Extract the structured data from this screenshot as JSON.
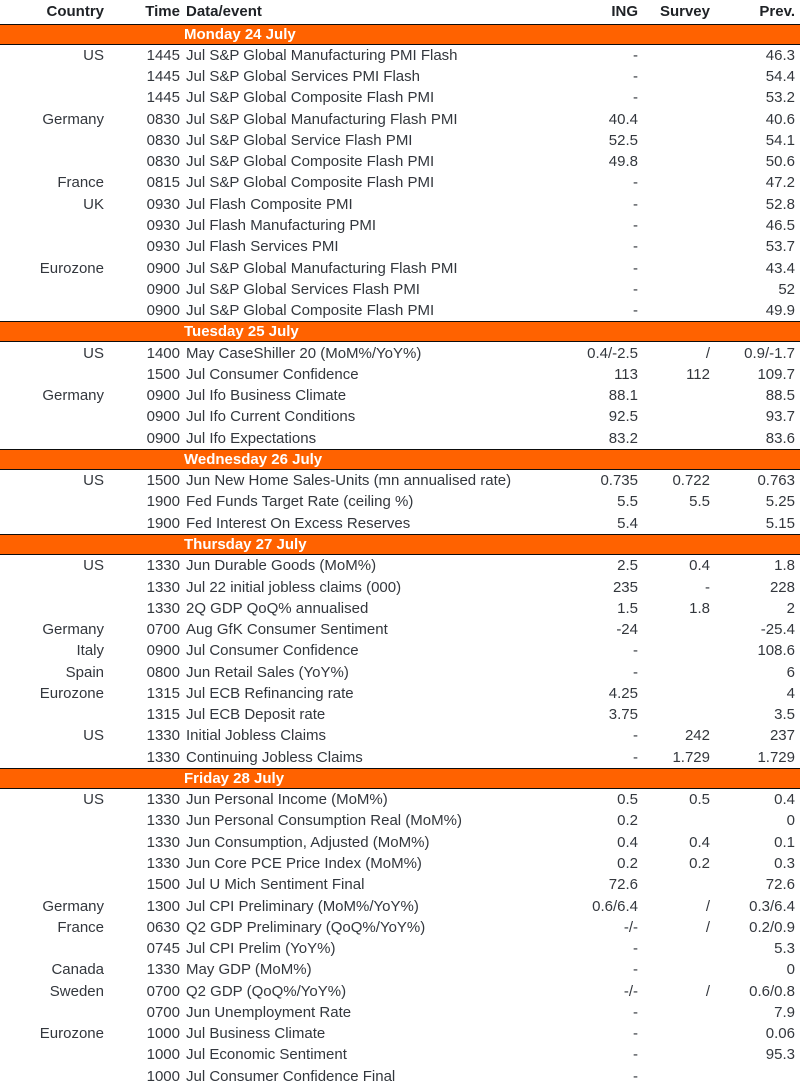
{
  "header": {
    "country": "Country",
    "time": "Time",
    "event": "Data/event",
    "ing": "ING",
    "survey": "Survey",
    "prev": "Prev."
  },
  "colors": {
    "accent_orange": "#FF6200",
    "day_bar_text": "#FFFFFF",
    "body_text": "#33373D",
    "separator_line": "#0D0D0D"
  },
  "days": [
    {
      "label": "Monday 24 July",
      "rows": [
        {
          "country": "US",
          "time": "1445",
          "event": "Jul S&P Global Manufacturing PMI Flash",
          "ing": "-",
          "survey": "",
          "prev": "46.3"
        },
        {
          "country": "",
          "time": "1445",
          "event": "Jul S&P Global Services PMI Flash",
          "ing": "-",
          "survey": "",
          "prev": "54.4"
        },
        {
          "country": "",
          "time": "1445",
          "event": "Jul S&P Global Composite Flash PMI",
          "ing": "-",
          "survey": "",
          "prev": "53.2"
        },
        {
          "country": "Germany",
          "time": "0830",
          "event": "Jul S&P Global Manufacturing Flash PMI",
          "ing": "40.4",
          "survey": "",
          "prev": "40.6"
        },
        {
          "country": "",
          "time": "0830",
          "event": "Jul S&P Global Service Flash PMI",
          "ing": "52.5",
          "survey": "",
          "prev": "54.1"
        },
        {
          "country": "",
          "time": "0830",
          "event": "Jul S&P Global Composite Flash PMI",
          "ing": "49.8",
          "survey": "",
          "prev": "50.6"
        },
        {
          "country": "France",
          "time": "0815",
          "event": "Jul S&P Global Composite Flash PMI",
          "ing": "-",
          "survey": "",
          "prev": "47.2"
        },
        {
          "country": "UK",
          "time": "0930",
          "event": "Jul Flash Composite PMI",
          "ing": "-",
          "survey": "",
          "prev": "52.8"
        },
        {
          "country": "",
          "time": "0930",
          "event": "Jul Flash Manufacturing PMI",
          "ing": "-",
          "survey": "",
          "prev": "46.5"
        },
        {
          "country": "",
          "time": "0930",
          "event": "Jul Flash Services PMI",
          "ing": "-",
          "survey": "",
          "prev": "53.7"
        },
        {
          "country": "Eurozone",
          "time": "0900",
          "event": "Jul S&P Global Manufacturing Flash PMI",
          "ing": "-",
          "survey": "",
          "prev": "43.4"
        },
        {
          "country": "",
          "time": "0900",
          "event": "Jul S&P Global Services Flash PMI",
          "ing": "-",
          "survey": "",
          "prev": "52"
        },
        {
          "country": "",
          "time": "0900",
          "event": "Jul S&P Global Composite Flash PMI",
          "ing": "-",
          "survey": "",
          "prev": "49.9"
        }
      ]
    },
    {
      "label": "Tuesday 25 July",
      "rows": [
        {
          "country": "US",
          "time": "1400",
          "event": "May CaseShiller 20 (MoM%/YoY%)",
          "ing": "0.4/-2.5",
          "survey": "/",
          "prev": "0.9/-1.7"
        },
        {
          "country": "",
          "time": "1500",
          "event": "Jul Consumer Confidence",
          "ing": "113",
          "survey": "112",
          "prev": "109.7"
        },
        {
          "country": "Germany",
          "time": "0900",
          "event": "Jul Ifo Business Climate",
          "ing": "88.1",
          "survey": "",
          "prev": "88.5"
        },
        {
          "country": "",
          "time": "0900",
          "event": "Jul Ifo Current Conditions",
          "ing": "92.5",
          "survey": "",
          "prev": "93.7"
        },
        {
          "country": "",
          "time": "0900",
          "event": "Jul Ifo Expectations",
          "ing": "83.2",
          "survey": "",
          "prev": "83.6"
        }
      ]
    },
    {
      "label": "Wednesday 26 July",
      "rows": [
        {
          "country": "US",
          "time": "1500",
          "event": "Jun New Home Sales-Units (mn annualised rate)",
          "ing": "0.735",
          "survey": "0.722",
          "prev": "0.763"
        },
        {
          "country": "",
          "time": "1900",
          "event": "Fed Funds Target Rate (ceiling %)",
          "ing": "5.5",
          "survey": "5.5",
          "prev": "5.25"
        },
        {
          "country": "",
          "time": "1900",
          "event": "Fed Interest On Excess Reserves",
          "ing": "5.4",
          "survey": "",
          "prev": "5.15"
        }
      ]
    },
    {
      "label": "Thursday 27 July",
      "rows": [
        {
          "country": "US",
          "time": "1330",
          "event": "Jun Durable Goods (MoM%)",
          "ing": "2.5",
          "survey": "0.4",
          "prev": "1.8"
        },
        {
          "country": "",
          "time": "1330",
          "event": "Jul 22 initial jobless claims (000)",
          "ing": "235",
          "survey": "-",
          "prev": "228"
        },
        {
          "country": "",
          "time": "1330",
          "event": "2Q GDP QoQ% annualised",
          "ing": "1.5",
          "survey": "1.8",
          "prev": "2"
        },
        {
          "country": "Germany",
          "time": "0700",
          "event": "Aug GfK Consumer Sentiment",
          "ing": "-24",
          "survey": "",
          "prev": "-25.4"
        },
        {
          "country": "Italy",
          "time": "0900",
          "event": "Jul Consumer Confidence",
          "ing": "-",
          "survey": "",
          "prev": "108.6"
        },
        {
          "country": "Spain",
          "time": "0800",
          "event": "Jun Retail Sales (YoY%)",
          "ing": "-",
          "survey": "",
          "prev": "6"
        },
        {
          "country": "Eurozone",
          "time": "1315",
          "event": "Jul ECB Refinancing rate",
          "ing": "4.25",
          "survey": "",
          "prev": "4"
        },
        {
          "country": "",
          "time": "1315",
          "event": "Jul ECB Deposit rate",
          "ing": "3.75",
          "survey": "",
          "prev": "3.5"
        },
        {
          "country": "US",
          "time": "1330",
          "event": "Initial Jobless Claims",
          "ing": "-",
          "survey": "242",
          "prev": "237"
        },
        {
          "country": "",
          "time": "1330",
          "event": "Continuing Jobless Claims",
          "ing": "-",
          "survey": "1.729",
          "prev": "1.729"
        }
      ]
    },
    {
      "label": "Friday 28 July",
      "rows": [
        {
          "country": "US",
          "time": "1330",
          "event": "Jun Personal Income (MoM%)",
          "ing": "0.5",
          "survey": "0.5",
          "prev": "0.4"
        },
        {
          "country": "",
          "time": "1330",
          "event": "Jun Personal Consumption Real (MoM%)",
          "ing": "0.2",
          "survey": "",
          "prev": "0"
        },
        {
          "country": "",
          "time": "1330",
          "event": "Jun Consumption, Adjusted (MoM%)",
          "ing": "0.4",
          "survey": "0.4",
          "prev": "0.1"
        },
        {
          "country": "",
          "time": "1330",
          "event": "Jun Core PCE Price Index (MoM%)",
          "ing": "0.2",
          "survey": "0.2",
          "prev": "0.3"
        },
        {
          "country": "",
          "time": "1500",
          "event": "Jul U Mich Sentiment Final",
          "ing": "72.6",
          "survey": "",
          "prev": "72.6"
        },
        {
          "country": "Germany",
          "time": "1300",
          "event": "Jul CPI Preliminary (MoM%/YoY%)",
          "ing": "0.6/6.4",
          "survey": "/",
          "prev": "0.3/6.4"
        },
        {
          "country": "France",
          "time": "0630",
          "event": "Q2 GDP Preliminary (QoQ%/YoY%)",
          "ing": "-/-",
          "survey": "/",
          "prev": "0.2/0.9"
        },
        {
          "country": "",
          "time": "0745",
          "event": "Jul CPI  Prelim (YoY%)",
          "ing": "-",
          "survey": "",
          "prev": "5.3"
        },
        {
          "country": "Canada",
          "time": "1330",
          "event": "May GDP (MoM%)",
          "ing": "-",
          "survey": "",
          "prev": "0"
        },
        {
          "country": "Sweden",
          "time": "0700",
          "event": "Q2 GDP (QoQ%/YoY%)",
          "ing": "-/-",
          "survey": "/",
          "prev": "0.6/0.8"
        },
        {
          "country": "",
          "time": "0700",
          "event": "Jun Unemployment Rate",
          "ing": "-",
          "survey": "",
          "prev": "7.9"
        },
        {
          "country": "Eurozone",
          "time": "1000",
          "event": "Jul Business Climate",
          "ing": "-",
          "survey": "",
          "prev": "0.06"
        },
        {
          "country": "",
          "time": "1000",
          "event": "Jul Economic Sentiment",
          "ing": "-",
          "survey": "",
          "prev": "95.3"
        },
        {
          "country": "",
          "time": "1000",
          "event": "Jul Consumer Confidence Final",
          "ing": "-",
          "survey": "",
          "prev": ""
        }
      ]
    }
  ]
}
